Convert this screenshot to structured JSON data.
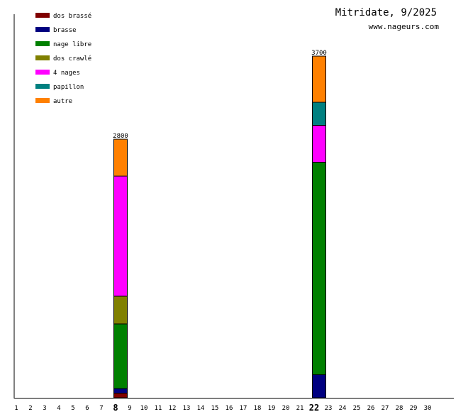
{
  "chart_data": {
    "type": "bar",
    "stacked": true,
    "title": "Mitridate, 9/2025",
    "subtitle": "www.nageurs.com",
    "xlabel": "",
    "ylabel": "",
    "ylim": [
      0,
      4000
    ],
    "grid": false,
    "legend_position": "top-left",
    "categories": [
      "1",
      "2",
      "3",
      "4",
      "5",
      "6",
      "7",
      "8",
      "9",
      "10",
      "11",
      "12",
      "13",
      "14",
      "15",
      "16",
      "17",
      "18",
      "19",
      "20",
      "21",
      "22",
      "23",
      "24",
      "25",
      "26",
      "27",
      "28",
      "29",
      "30"
    ],
    "highlighted_categories": [
      "8",
      "22"
    ],
    "series": [
      {
        "name": "dos brassé",
        "color": "#800000",
        "values": {
          "8": 50,
          "22": 0
        }
      },
      {
        "name": "brasse",
        "color": "#000080",
        "values": {
          "8": 50,
          "22": 250
        }
      },
      {
        "name": "nage libre",
        "color": "#008000",
        "values": {
          "8": 700,
          "22": 2300
        }
      },
      {
        "name": "dos crawlé",
        "color": "#808000",
        "values": {
          "8": 300,
          "22": 0
        }
      },
      {
        "name": "4 nages",
        "color": "#ff00ff",
        "values": {
          "8": 1300,
          "22": 400
        }
      },
      {
        "name": "papillon",
        "color": "#008080",
        "values": {
          "8": 0,
          "22": 250
        }
      },
      {
        "name": "autre",
        "color": "#ff8000",
        "values": {
          "8": 400,
          "22": 500
        }
      }
    ],
    "totals": {
      "8": "2800",
      "22": "3700"
    }
  }
}
